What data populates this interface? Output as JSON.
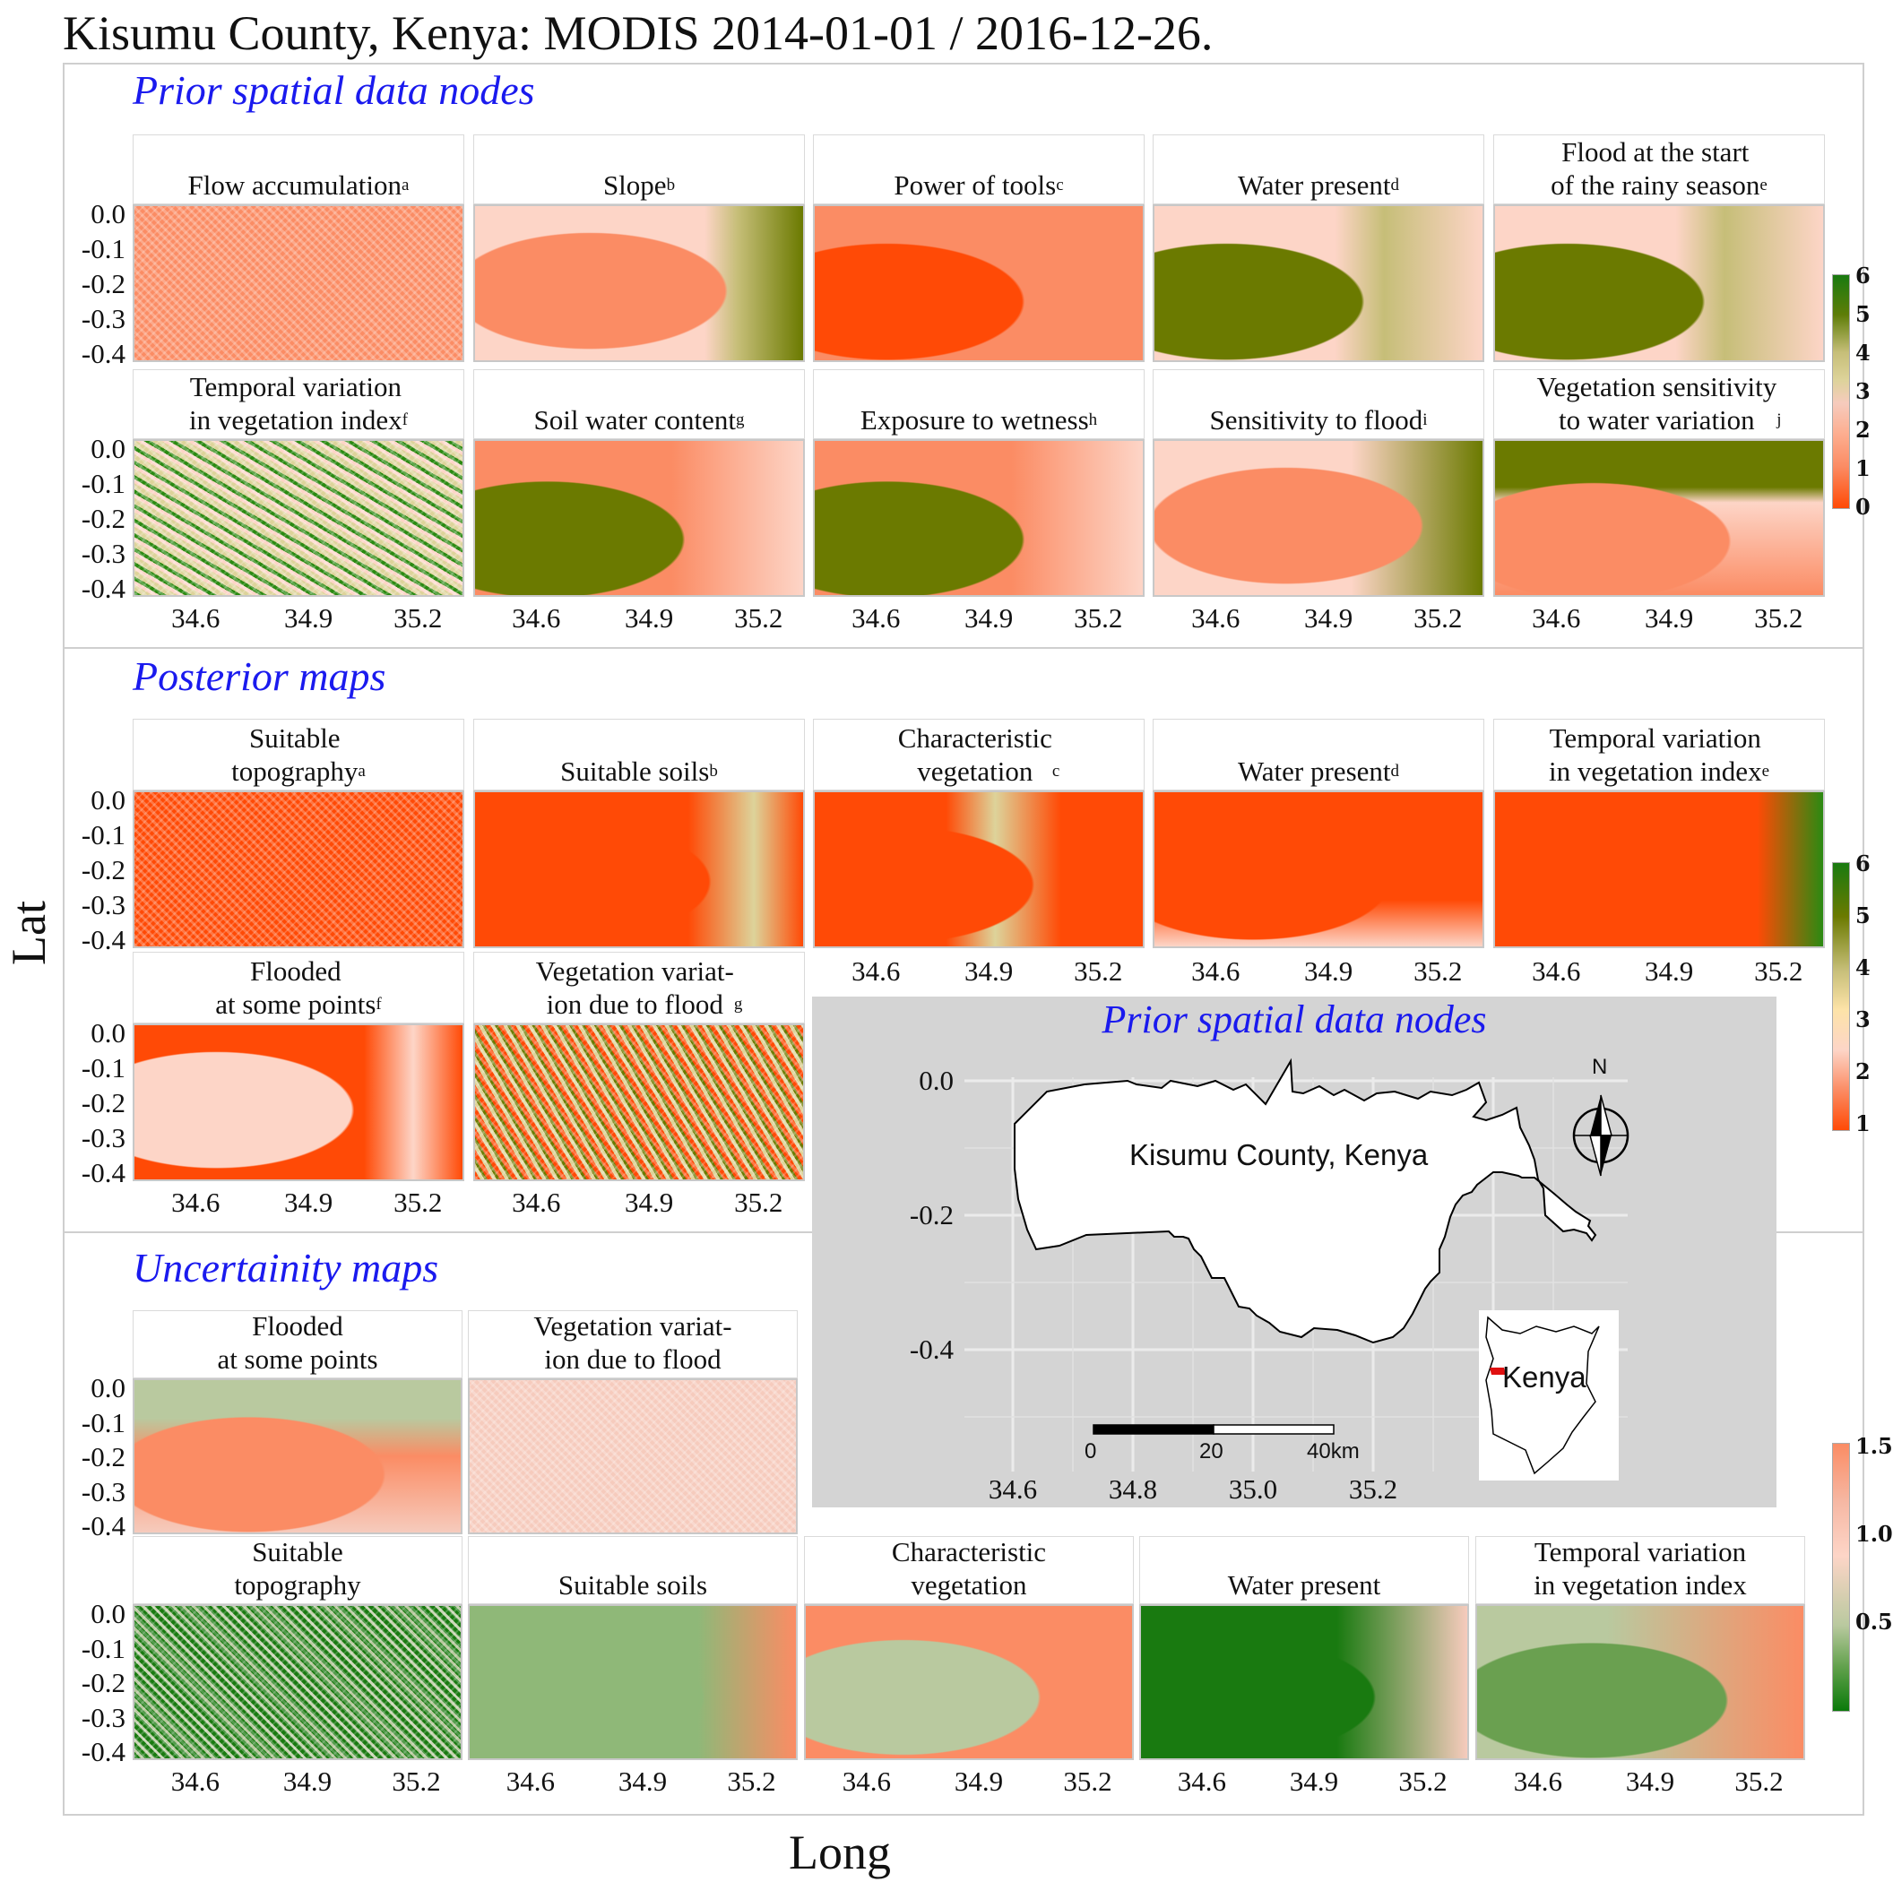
{
  "title": "Kisumu County, Kenya: MODIS 2014-01-01 / 2016-12-26.",
  "axis_titles": {
    "x": "Long",
    "y": "Lat"
  },
  "sections": {
    "prior": "Prior spatial data nodes",
    "posterior": "Posterior maps",
    "uncertainty": "Uncertainity maps"
  },
  "prior_panels": [
    {
      "label": "Flow accumulation",
      "sup": "a"
    },
    {
      "label": "Slope",
      "sup": "b"
    },
    {
      "label": "Power of tools",
      "sup": "c"
    },
    {
      "label": "Water present",
      "sup": "d"
    },
    {
      "label": "Flood at the start\nof the rainy season",
      "sup": "e"
    },
    {
      "label": "Temporal variation\nin vegetation index",
      "sup": "f"
    },
    {
      "label": "Soil water content",
      "sup": "g"
    },
    {
      "label": "Exposure to wetness",
      "sup": "h"
    },
    {
      "label": "Sensitivity to flood",
      "sup": "i"
    },
    {
      "label": "Vegetation sensitivity\nto water variation",
      "sup": "j"
    }
  ],
  "posterior_panels": [
    {
      "label": "Suitable\ntopography",
      "sup": "a"
    },
    {
      "label": "Suitable soils",
      "sup": "b"
    },
    {
      "label": "Characteristic\nvegetation",
      "sup": "c"
    },
    {
      "label": "Water present",
      "sup": "d"
    },
    {
      "label": "Temporal variation\nin vegetation index",
      "sup": "e"
    },
    {
      "label": "Flooded\nat some points",
      "sup": "f"
    },
    {
      "label": "Vegetation variat-\nion due to flood",
      "sup": "g"
    }
  ],
  "uncertainty_panels": [
    {
      "label": "Flooded\nat some points"
    },
    {
      "label": "Vegetation variat-\nion due to flood"
    },
    {
      "label": "Suitable\ntopography"
    },
    {
      "label": "Suitable soils"
    },
    {
      "label": "Characteristic\nvegetation"
    },
    {
      "label": "Water present"
    },
    {
      "label": "Temporal variation\nin vegetation index"
    }
  ],
  "lat_ticks": [
    "0.0",
    "-0.1",
    "-0.2",
    "-0.3",
    "-0.4"
  ],
  "long_ticks": [
    "34.6",
    "34.9",
    "35.2"
  ],
  "legend_prior": [
    "6",
    "5",
    "4",
    "3",
    "2",
    "1",
    "0"
  ],
  "legend_posterior": [
    "6",
    "5",
    "4",
    "3",
    "2",
    "1"
  ],
  "legend_uncertainty": [
    "1.5",
    "1.0",
    "0.5"
  ],
  "inset": {
    "title": "Prior spatial data nodes",
    "county_label": "Kisumu County, Kenya",
    "country_label": "Kenya",
    "north": "N",
    "lat_ticks": [
      "0.0",
      "-0.2",
      "-0.4"
    ],
    "long_ticks": [
      "34.6",
      "34.8",
      "35.0",
      "35.2"
    ],
    "scale_labels": [
      "0",
      "20",
      "40km"
    ]
  },
  "colors": {
    "salmon": "#fb8c64",
    "red_orange": "#ff4a06",
    "pink": "#fdd5c7",
    "light_pink": "#f6cbbd",
    "tan": "#ddd39a",
    "khaki": "#c6be78",
    "olive": "#6b7a00",
    "green": "#2b8a12",
    "dark_green": "#197a10",
    "sage": "#b9c99f",
    "map_bg": "#d4d4d4",
    "section_title": "#1a1aee"
  }
}
